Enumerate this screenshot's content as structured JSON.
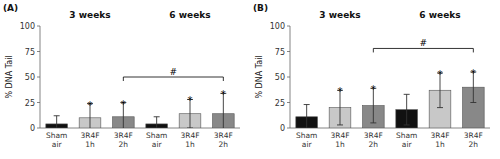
{
  "chart_data": [
    {
      "type": "bar",
      "panel_label": "(A)",
      "group_titles": [
        "3 weeks",
        "6 weeks"
      ],
      "categories": [
        "Sham air",
        "3R4F 1h",
        "3R4F 2h",
        "Sham air",
        "3R4F 1h",
        "3R4F 2h"
      ],
      "values": [
        4,
        10,
        11,
        4,
        14,
        14
      ],
      "errors": [
        8,
        14,
        14,
        7,
        14,
        20
      ],
      "colors": [
        "#111111",
        "#c8c8c8",
        "#888888",
        "#111111",
        "#c8c8c8",
        "#888888"
      ],
      "stars": [
        false,
        true,
        true,
        false,
        true,
        true
      ],
      "star_label": "*",
      "bracket": {
        "start": 2,
        "end": 5,
        "y": 50,
        "label": "#"
      },
      "ylabel": "% DNA Tail",
      "ylim": [
        0,
        100
      ],
      "yticks": [
        0,
        25,
        50,
        75,
        100
      ],
      "grid": false
    },
    {
      "type": "bar",
      "panel_label": "(B)",
      "group_titles": [
        "3 weeks",
        "6 weeks"
      ],
      "categories": [
        "Sham air",
        "3R4F 1h",
        "3R4F 2h",
        "Sham air",
        "3R4F 1h",
        "3R4F 2h"
      ],
      "values": [
        11,
        20,
        22,
        18,
        37,
        40
      ],
      "errors": [
        12,
        17,
        17,
        15,
        17,
        15
      ],
      "colors": [
        "#111111",
        "#c8c8c8",
        "#888888",
        "#111111",
        "#c8c8c8",
        "#888888"
      ],
      "stars": [
        false,
        true,
        true,
        false,
        true,
        true
      ],
      "star_label": "*",
      "bracket": {
        "start": 2,
        "end": 5,
        "y": 78,
        "label": "#"
      },
      "ylabel": "% DNA Tail",
      "ylim": [
        0,
        100
      ],
      "yticks": [
        0,
        25,
        50,
        75,
        100
      ],
      "grid": false
    }
  ]
}
